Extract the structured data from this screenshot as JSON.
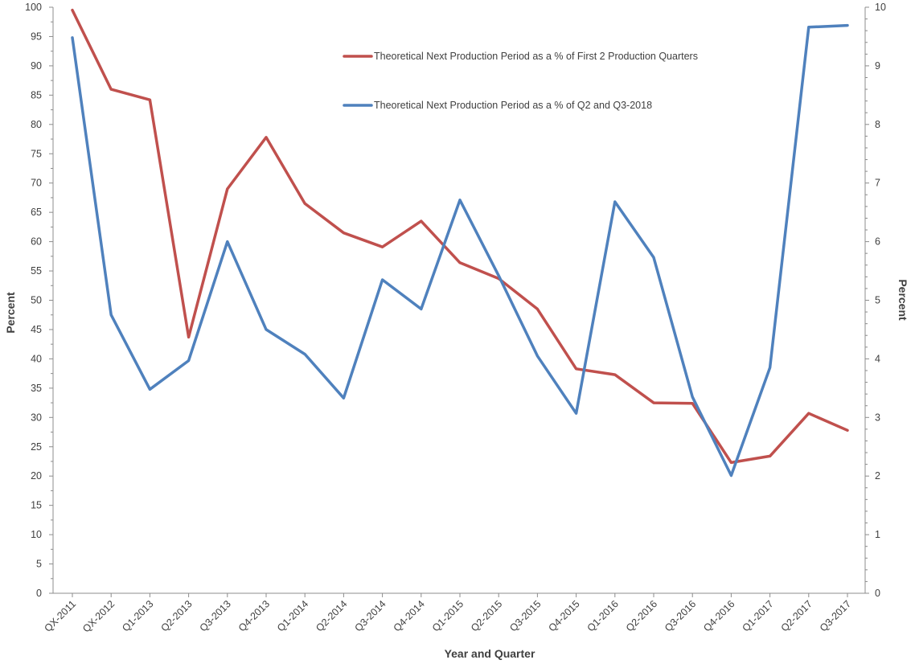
{
  "chart_data": {
    "type": "line",
    "xlabel": "Year and Quarter",
    "ylabel_left": "Percent",
    "ylabel_right": "Percent",
    "ylim_left": [
      0,
      100
    ],
    "ylim_right": [
      0,
      10
    ],
    "yticks_left": [
      "0",
      "5",
      "10",
      "15",
      "20",
      "25",
      "30",
      "35",
      "40",
      "45",
      "50",
      "55",
      "60",
      "65",
      "70",
      "75",
      "80",
      "85",
      "90",
      "95",
      "100"
    ],
    "yticks_right": [
      "0",
      "1",
      "2",
      "3",
      "4",
      "5",
      "6",
      "7",
      "8",
      "9",
      "10"
    ],
    "grid": false,
    "legend_position": "top-center",
    "categories": [
      "QX-2011",
      "QX-2012",
      "Q1-2013",
      "Q2-2013",
      "Q3-2013",
      "Q4-2013",
      "Q1-2014",
      "Q2-2014",
      "Q3-2014",
      "Q4-2014",
      "Q1-2015",
      "Q2-2015",
      "Q3-2015",
      "Q4-2015",
      "Q1-2016",
      "Q2-2016",
      "Q3-2016",
      "Q4-2016",
      "Q1-2017",
      "Q2-2017",
      "Q3-2017"
    ],
    "series": [
      {
        "name": "Theoretical Next Production Period as a % of First 2 Production Quarters",
        "axis": "left",
        "color": "#c0504d",
        "values": [
          99.5,
          86,
          84.2,
          43.7,
          69,
          77.8,
          66.5,
          61.5,
          59.1,
          63.5,
          56.4,
          53.7,
          48.5,
          38.3,
          37.3,
          32.5,
          32.4,
          22.3,
          23.4,
          30.7,
          27.8
        ]
      },
      {
        "name": "Theoretical Next Production Period as a % of Q2 and Q3-2018",
        "axis": "right",
        "color": "#4f81bd",
        "values": [
          9.48,
          4.75,
          3.48,
          3.97,
          6.0,
          4.5,
          4.08,
          3.33,
          5.35,
          4.85,
          6.71,
          5.42,
          4.05,
          3.07,
          6.68,
          5.73,
          3.35,
          2.01,
          3.85,
          9.66,
          9.69
        ]
      }
    ]
  }
}
